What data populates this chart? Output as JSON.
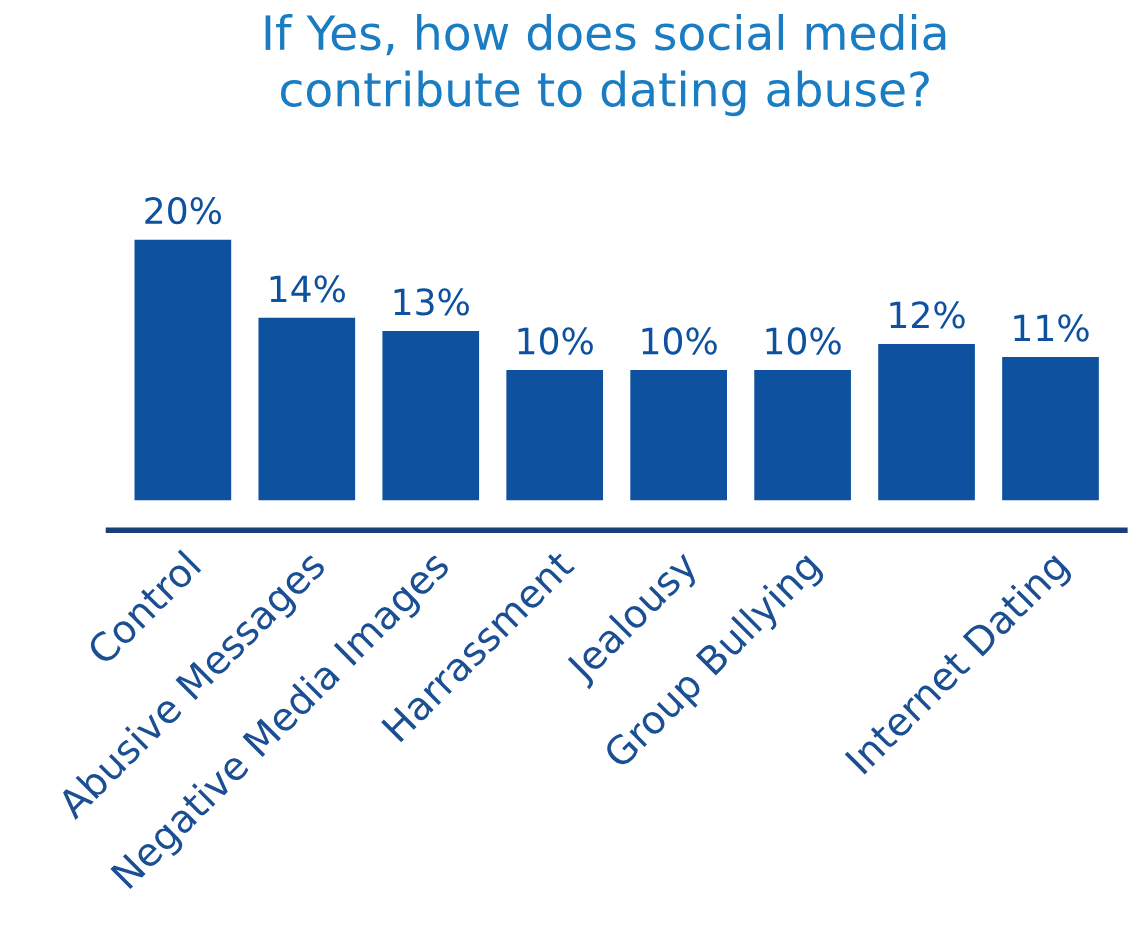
{
  "chart_data": {
    "type": "bar",
    "title": "If Yes, how does social media\ncontribute to dating abuse?",
    "categories": [
      "Control",
      "Abusive Messages",
      "Negative Media Images",
      "Harrassment",
      "Jealousy",
      "Group Bullying",
      null,
      "Internet Dating"
    ],
    "values": [
      20,
      14,
      13,
      10,
      10,
      10,
      12,
      11
    ],
    "value_labels": [
      "20%",
      "14%",
      "13%",
      "10%",
      "10%",
      "10%",
      "12%",
      "11%"
    ],
    "color": "#0d519f"
  }
}
